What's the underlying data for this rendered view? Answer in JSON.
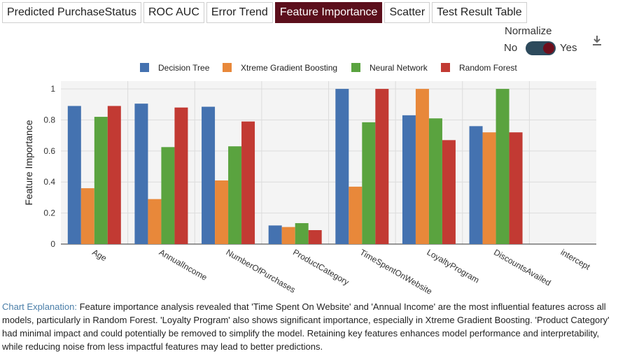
{
  "tabs": [
    {
      "label": "Predicted PurchaseStatus",
      "active": false
    },
    {
      "label": "ROC AUC",
      "active": false
    },
    {
      "label": "Error Trend",
      "active": false
    },
    {
      "label": "Feature Importance",
      "active": true
    },
    {
      "label": "Scatter",
      "active": false
    },
    {
      "label": "Test Result Table",
      "active": false
    }
  ],
  "normalize": {
    "label": "Normalize",
    "off_label": "No",
    "on_label": "Yes",
    "value": true
  },
  "download_icon": "download-icon",
  "explanation": {
    "label": "Chart Explanation:",
    "text": "Feature importance analysis revealed that 'Time Spent On Website' and 'Annual Income' are the most influential features across all models, particularly in Random Forest. 'Loyalty Program' also shows significant importance, especially in Xtreme Gradient Boosting. 'Product Category' had minimal impact and could potentially be removed to simplify the model. Retaining key features enhances model performance and interpretability, while reducing noise from less impactful features may lead to better predictions."
  },
  "chart_data": {
    "type": "bar",
    "ylabel": "Feature Importance",
    "ylim": [
      0,
      1.05
    ],
    "yticks": [
      "0",
      "0.2",
      "0.4",
      "0.6",
      "0.8",
      "1"
    ],
    "grid": true,
    "legend_position": "top",
    "categories": [
      "Age",
      "AnnualIncome",
      "NumberOfPurchases",
      "ProductCategory",
      "TimeSpentOnWebsite",
      "LoyaltyProgram",
      "DiscountsAvailed",
      "intercept"
    ],
    "series": [
      {
        "name": "Decision Tree",
        "color": "#4472b0",
        "values": [
          0.89,
          0.905,
          0.885,
          0.12,
          1.0,
          0.83,
          0.76,
          0
        ]
      },
      {
        "name": "Xtreme Gradient Boosting",
        "color": "#e8883a",
        "values": [
          0.36,
          0.29,
          0.41,
          0.11,
          0.37,
          1.0,
          0.72,
          0
        ]
      },
      {
        "name": "Neural Network",
        "color": "#5aa33f",
        "values": [
          0.82,
          0.625,
          0.63,
          0.135,
          0.785,
          0.81,
          1.0,
          0
        ]
      },
      {
        "name": "Random Forest",
        "color": "#c23a33",
        "values": [
          0.89,
          0.88,
          0.79,
          0.09,
          1.0,
          0.67,
          0.72,
          0
        ]
      }
    ]
  }
}
